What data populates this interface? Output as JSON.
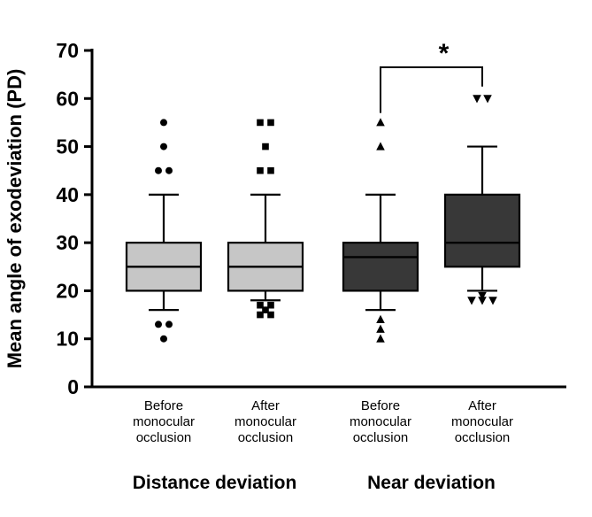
{
  "chart_data": {
    "type": "boxplot",
    "ylabel": "Mean angle of exodeviation (PD)",
    "ylim": [
      0,
      70
    ],
    "ytick_step": 10,
    "yticks": [
      0,
      10,
      20,
      30,
      40,
      50,
      60,
      70
    ],
    "grid": false,
    "group_labels": [
      "Distance deviation",
      "Near deviation"
    ],
    "boxes": [
      {
        "label_lines": [
          "Before",
          "monocular",
          "occlusion"
        ],
        "group": "Distance deviation",
        "marker": "circle",
        "fill": "#c6c6c6",
        "whisker_low": 16,
        "q1": 20,
        "median": 25,
        "q3": 30,
        "whisker_high": 40,
        "outliers_low": [
          10,
          13,
          13
        ],
        "outliers_high": [
          45,
          45,
          50,
          55
        ]
      },
      {
        "label_lines": [
          "After",
          "monocular",
          "occlusion"
        ],
        "group": "Distance deviation",
        "marker": "square",
        "fill": "#c6c6c6",
        "whisker_low": 18,
        "q1": 20,
        "median": 25,
        "q3": 30,
        "whisker_high": 40,
        "outliers_low": [
          15,
          15,
          16,
          17,
          17
        ],
        "outliers_high": [
          45,
          45,
          50,
          55,
          55
        ]
      },
      {
        "label_lines": [
          "Before",
          "monocular",
          "occlusion"
        ],
        "group": "Near deviation",
        "marker": "triangle-up",
        "fill": "#383838",
        "whisker_low": 16,
        "q1": 20,
        "median": 27,
        "q3": 30,
        "whisker_high": 40,
        "outliers_low": [
          10,
          12,
          14
        ],
        "outliers_high": [
          50,
          55
        ]
      },
      {
        "label_lines": [
          "After",
          "monocular",
          "occlusion"
        ],
        "group": "Near deviation",
        "marker": "triangle-down",
        "fill": "#383838",
        "whisker_low": 20,
        "q1": 25,
        "median": 30,
        "q3": 40,
        "whisker_high": 50,
        "outliers_low": [
          18,
          18,
          18,
          19
        ],
        "outliers_high": [
          60,
          60
        ]
      }
    ],
    "significance": {
      "between_boxes": [
        2,
        3
      ],
      "label": "*"
    },
    "colors": {
      "distance_fill": "#c6c6c6",
      "near_fill": "#383838",
      "stroke": "#000000",
      "background": "#ffffff"
    }
  }
}
